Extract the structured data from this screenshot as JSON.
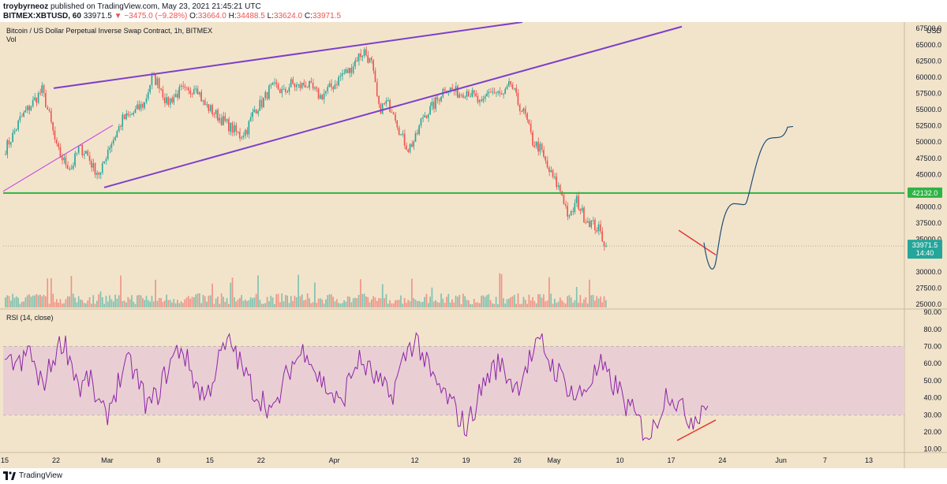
{
  "header": {
    "author": "troybyrneoz",
    "published": "published on TradingView.com, May 23, 2021 21:45:21 UTC",
    "symbol": "BITMEX:XBTUSD, 60",
    "last": "33971.5",
    "change": "−3475.0 (−9.28%)",
    "o_label": "O:",
    "o": "33664.0",
    "h_label": "H:",
    "h": "34488.5",
    "l_label": "L:",
    "l": "33624.0",
    "c_label": "C:",
    "c": "33971.5"
  },
  "footer": {
    "brand": "TradingView"
  },
  "colors": {
    "background": "#f2e4cb",
    "purple_line": "#7e3fc9",
    "magenta_line": "#c93fe0",
    "green_level": "#2fb344",
    "rsi_line": "#8e24aa",
    "rsi_band": "#e9cfd3",
    "projection": "#1f4e79",
    "divergence": "#e53935",
    "up_candle": "#26a69a",
    "down_candle": "#ef5350",
    "price_label": "#26a69a",
    "level_label": "#2fb344"
  },
  "chart_data": [
    {
      "type": "candlestick",
      "title": "Bitcoin / US Dollar Perpetual Inverse Swap Contract, 1h, BITMEX",
      "volume_label": "Vol",
      "currency": "USD",
      "ylim": [
        24500,
        68500
      ],
      "y_ticks": [
        "25000.0",
        "27500.0",
        "30000.0",
        "32500.0",
        "35000.0",
        "37500.0",
        "40000.0",
        "42500.0",
        "45000.0",
        "47500.0",
        "50000.0",
        "52500.0",
        "55000.0",
        "57500.0",
        "60000.0",
        "62500.0",
        "65000.0",
        "67500.0"
      ],
      "x_ticks": [
        "15",
        "22",
        "Mar",
        "8",
        "15",
        "22",
        "Apr",
        "12",
        "19",
        "26",
        "May",
        "10",
        "17",
        "24",
        "Jun",
        "7",
        "13"
      ],
      "approx_daily_closes": [
        49000,
        51000,
        53500,
        55000,
        56500,
        58000,
        54000,
        49000,
        47000,
        46000,
        49000,
        48500,
        46000,
        45000,
        49000,
        51000,
        53500,
        54000,
        55000,
        56000,
        60000,
        59000,
        56000,
        57000,
        58000,
        57500,
        59000,
        56000,
        55000,
        54000,
        53000,
        52000,
        51000,
        52000,
        55000,
        56000,
        58000,
        58500,
        57500,
        59000,
        58500,
        59000,
        58000,
        57000,
        58000,
        59000,
        60500,
        61000,
        63000,
        64000,
        62000,
        55000,
        56000,
        55000,
        51000,
        49000,
        50500,
        54000,
        55000,
        56500,
        58500,
        58000,
        57500,
        58000,
        57000,
        55500,
        58000,
        57500,
        57000,
        59000,
        56000,
        54000,
        50000,
        49000,
        46000,
        44000,
        42000,
        38000,
        41000,
        38500,
        37500,
        36500,
        34000
      ],
      "level_line": {
        "value": 42132.0,
        "label": "42132.0"
      },
      "last_price": {
        "value": 33971.5,
        "label": "33971.5",
        "countdown": "14:40"
      },
      "projection_path": [
        [
          34000,
          "May 23"
        ],
        [
          31500,
          "May 24"
        ],
        [
          40500,
          "May 26"
        ],
        [
          46000,
          "May 27"
        ],
        [
          51000,
          "May 29"
        ],
        [
          52500,
          "May 31"
        ]
      ]
    },
    {
      "type": "line",
      "title": "RSI (14, close)",
      "ylim": [
        8,
        91
      ],
      "y_ticks": [
        "10.00",
        "20.00",
        "30.00",
        "40.00",
        "50.00",
        "60.00",
        "70.00",
        "80.00",
        "90.00"
      ],
      "band": [
        30,
        70
      ],
      "approx_values": [
        55,
        62,
        58,
        70,
        48,
        52,
        66,
        74,
        60,
        45,
        52,
        38,
        28,
        42,
        55,
        60,
        48,
        35,
        40,
        52,
        63,
        70,
        58,
        46,
        40,
        55,
        68,
        72,
        60,
        50,
        42,
        38,
        30,
        45,
        58,
        64,
        70,
        55,
        48,
        42,
        35,
        50,
        62,
        58,
        52,
        46,
        40,
        55,
        68,
        75,
        62,
        50,
        44,
        38,
        30,
        22,
        35,
        48,
        56,
        60,
        52,
        46,
        58,
        66,
        72,
        60,
        54,
        48,
        40,
        44,
        52,
        58,
        50,
        46,
        36,
        30,
        22,
        18,
        32,
        45,
        38,
        30,
        28,
        34,
        40
      ]
    }
  ]
}
